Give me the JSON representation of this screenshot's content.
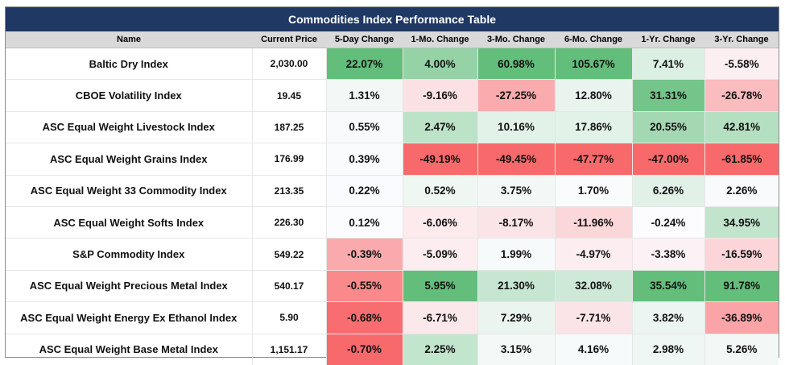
{
  "chart_data": {
    "type": "table",
    "title": "Commodities Index Performance Table",
    "columns": [
      "Name",
      "Current Price",
      "5-Day Change",
      "1-Mo. Change",
      "3-Mo. Change",
      "6-Mo. Change",
      "1-Yr. Change",
      "3-Yr. Change"
    ],
    "rows": [
      {
        "name": "Baltic Dry Index",
        "price": "2,030.00",
        "changes": [
          "22.07%",
          "4.00%",
          "60.98%",
          "105.67%",
          "7.41%",
          "-5.58%"
        ]
      },
      {
        "name": "CBOE Volatility Index",
        "price": "19.45",
        "changes": [
          "1.31%",
          "-9.16%",
          "-27.25%",
          "12.80%",
          "31.31%",
          "-26.78%"
        ]
      },
      {
        "name": "ASC Equal Weight Livestock Index",
        "price": "187.25",
        "changes": [
          "0.55%",
          "2.47%",
          "10.16%",
          "17.86%",
          "20.55%",
          "42.81%"
        ]
      },
      {
        "name": "ASC Equal Weight Grains Index",
        "price": "176.99",
        "changes": [
          "0.39%",
          "-49.19%",
          "-49.45%",
          "-47.77%",
          "-47.00%",
          "-61.85%"
        ]
      },
      {
        "name": "ASC Equal Weight 33 Commodity Index",
        "price": "213.35",
        "changes": [
          "0.22%",
          "0.52%",
          "3.75%",
          "1.70%",
          "6.26%",
          "2.26%"
        ]
      },
      {
        "name": "ASC Equal Weight Softs Index",
        "price": "226.30",
        "changes": [
          "0.12%",
          "-6.06%",
          "-8.17%",
          "-11.96%",
          "-0.24%",
          "34.95%"
        ]
      },
      {
        "name": "S&P Commodity Index",
        "price": "549.22",
        "changes": [
          "-0.39%",
          "-5.09%",
          "1.99%",
          "-4.97%",
          "-3.38%",
          "-16.59%"
        ]
      },
      {
        "name": "ASC Equal Weight Precious Metal Index",
        "price": "540.17",
        "changes": [
          "-0.55%",
          "5.95%",
          "21.30%",
          "32.08%",
          "35.54%",
          "91.78%"
        ]
      },
      {
        "name": "ASC Equal Weight Energy Ex Ethanol Index",
        "price": "5.90",
        "changes": [
          "-0.68%",
          "-6.71%",
          "7.29%",
          "-7.71%",
          "3.82%",
          "-36.89%"
        ]
      },
      {
        "name": "ASC Equal Weight Base Metal Index",
        "price": "1,151.17",
        "changes": [
          "-0.70%",
          "2.25%",
          "3.15%",
          "4.16%",
          "2.98%",
          "5.26%"
        ]
      }
    ],
    "colors": {
      "header_bar": "#1f3864",
      "header_row": "#d9d9d9",
      "positive_max": "#63be7b",
      "negative_max": "#f8696b",
      "neutral": "#fcfcff"
    }
  }
}
